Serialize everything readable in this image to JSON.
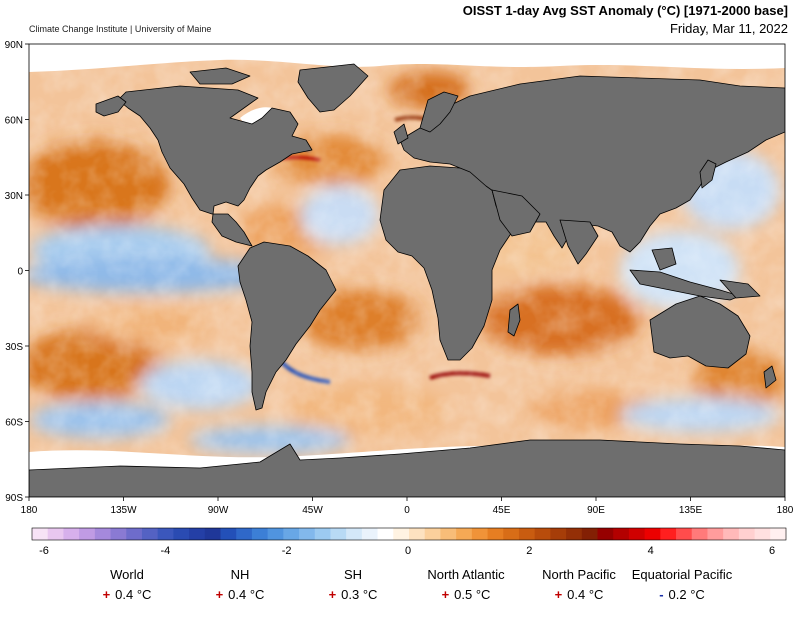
{
  "header": {
    "credit": "Climate Change Institute | University of Maine",
    "title": "OISST 1-day Avg SST Anomaly (°C) [1971-2000 base]",
    "date": "Friday, Mar 11, 2022"
  },
  "map": {
    "lat_labels": [
      "90N",
      "60N",
      "30N",
      "0",
      "30S",
      "60S",
      "90S"
    ],
    "lat_values": [
      90,
      60,
      30,
      0,
      -30,
      -60,
      -90
    ],
    "lon_labels": [
      "180",
      "135W",
      "90W",
      "45W",
      "0",
      "45E",
      "90E",
      "135E",
      "180"
    ],
    "lon_values": [
      -180,
      -135,
      -90,
      -45,
      0,
      45,
      90,
      135,
      180
    ]
  },
  "colorbar": {
    "min": -6,
    "max": 6,
    "tick_labels": [
      "-6",
      "-4",
      "-2",
      "0",
      "2",
      "4",
      "6"
    ],
    "tick_values": [
      -6,
      -4,
      -2,
      0,
      2,
      4,
      6
    ],
    "colors": [
      "#f7e3f6",
      "#e9c7f0",
      "#d7b0ec",
      "#c09be4",
      "#a589dc",
      "#8a7ad3",
      "#6e6ccb",
      "#5462c3",
      "#3b57bc",
      "#2a4bb2",
      "#243fa6",
      "#1f3799",
      "#2350b8",
      "#2f68c9",
      "#3c7fd6",
      "#5094df",
      "#68a7e6",
      "#82b8ec",
      "#9ccaf1",
      "#b8daf5",
      "#d4e8f9",
      "#eaf3fc",
      "#ffffff",
      "#fff3e2",
      "#fde2c0",
      "#fbd09c",
      "#f8bd78",
      "#f5a955",
      "#f09338",
      "#e67e22",
      "#d86d17",
      "#c95c10",
      "#b84c0b",
      "#a63d08",
      "#942f06",
      "#832004",
      "#960000",
      "#b30000",
      "#d00000",
      "#ec0000",
      "#ff1f1f",
      "#ff4c4c",
      "#ff7a7a",
      "#ff9c9c",
      "#ffb9b9",
      "#ffd0d0",
      "#ffe0e0",
      "#fff0f0"
    ]
  },
  "stats": [
    {
      "name": "World",
      "sign": "+",
      "value": "0.4 °C"
    },
    {
      "name": "NH",
      "sign": "+",
      "value": "0.4 °C"
    },
    {
      "name": "SH",
      "sign": "+",
      "value": "0.3 °C"
    },
    {
      "name": "North Atlantic",
      "sign": "+",
      "value": "0.5 °C"
    },
    {
      "name": "North Pacific",
      "sign": "+",
      "value": "0.4 °C"
    },
    {
      "name": "Equatorial Pacific",
      "sign": "-",
      "value": "0.2 °C"
    }
  ],
  "colors": {
    "land": "#6e6e6e",
    "ice": "#ffffff",
    "positive_sign": "#c00000",
    "negative_sign": "#1a2fa8"
  }
}
